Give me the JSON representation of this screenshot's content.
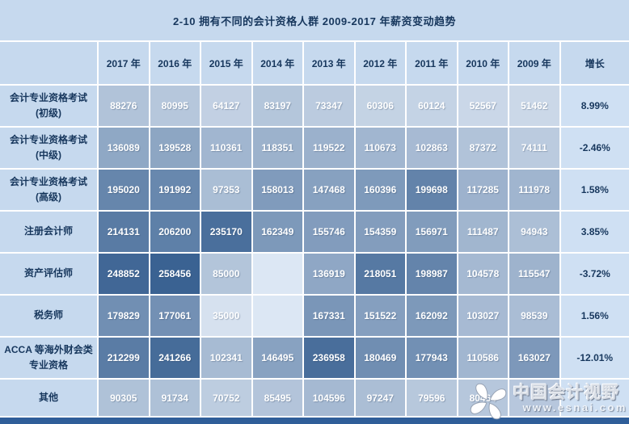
{
  "title": "2-10 拥有不同的会计资格人群 2009-2017 年薪资变动趋势",
  "chart_data": {
    "type": "heatmap",
    "columns": [
      "2017 年",
      "2016 年",
      "2015 年",
      "2014 年",
      "2013 年",
      "2012 年",
      "2011 年",
      "2010 年",
      "2009 年",
      "增长"
    ],
    "rows": [
      {
        "label": "会计专业资格考试\n(初级)",
        "values": [
          88276,
          80995,
          64127,
          83197,
          73347,
          60306,
          60124,
          52567,
          51462
        ],
        "growth": "8.99%"
      },
      {
        "label": "会计专业资格考试\n(中级)",
        "values": [
          136089,
          139528,
          110361,
          118351,
          119522,
          110673,
          102863,
          87372,
          74111
        ],
        "growth": "-2.46%"
      },
      {
        "label": "会计专业资格考试\n(高级)",
        "values": [
          195020,
          191992,
          97353,
          158013,
          147468,
          160396,
          199698,
          117285,
          111978
        ],
        "growth": "1.58%"
      },
      {
        "label": "注册会计师",
        "values": [
          214131,
          206200,
          235170,
          162349,
          155746,
          154359,
          156971,
          111487,
          94943
        ],
        "growth": "3.85%"
      },
      {
        "label": "资产评估师",
        "values": [
          248852,
          258456,
          85000,
          null,
          136919,
          218051,
          198987,
          104578,
          115547
        ],
        "growth": "-3.72%"
      },
      {
        "label": "税务师",
        "values": [
          179829,
          177061,
          35000,
          null,
          167331,
          151522,
          162092,
          103027,
          98539
        ],
        "growth": "1.56%"
      },
      {
        "label": "ACCA 等海外财会类\n专业资格",
        "values": [
          212299,
          241266,
          102341,
          146495,
          236958,
          180469,
          177943,
          110586,
          163027
        ],
        "growth": "-12.01%"
      },
      {
        "label": "其他",
        "values": [
          90305,
          91734,
          70752,
          85495,
          104596,
          97247,
          79596,
          80464,
          null
        ],
        "growth": "",
        "bg_overrides": {
          "8": "#b7c7dd"
        }
      }
    ],
    "heatmap_scale": {
      "min_value": 35000,
      "max_value": 258456,
      "min_color": "#d6e1ef",
      "max_color": "#3a6292",
      "blank_color": "#dce7f4"
    },
    "legend_position": "none",
    "grid": "white 2px lines"
  },
  "watermark": {
    "site_name": "中国会计视野",
    "site_url": "www.esnai.com"
  },
  "colors": {
    "panel_bg": "#c6d9ee",
    "growth_bg": "#cfe0f3",
    "grid": "#ffffff",
    "header_text": "#17375d",
    "cell_text": "#ffffff",
    "bottom_bar": "#2f5e99"
  }
}
